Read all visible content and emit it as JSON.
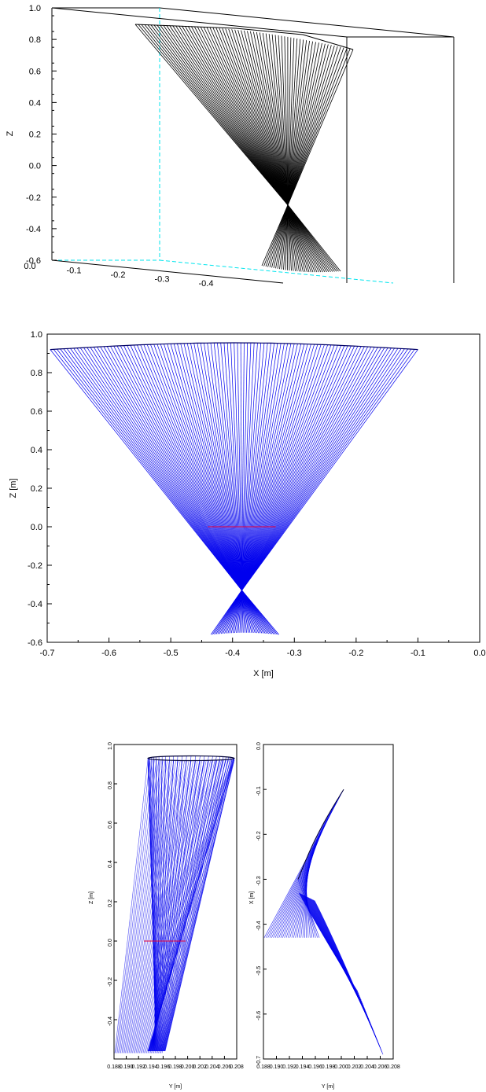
{
  "chart_data": [
    {
      "type": "line",
      "subtype": "3d-ray-fan",
      "zlabel": "Z",
      "zlim": [
        -0.6,
        1.0
      ],
      "z_ticks": [
        "1.0",
        "0.8",
        "0.6",
        "0.4",
        "0.2",
        "0.0",
        "-0.2",
        "-0.4",
        "-0.6"
      ],
      "x_ticks": [
        "0.0",
        "-0.1",
        "-0.2",
        "-0.3",
        "-0.4"
      ],
      "series_color": "#000000",
      "aux_color": "#00e5ee",
      "upper_fan": {
        "z_top": 0.87,
        "z_focus": -0.25,
        "rays": 70
      },
      "lower_fan": {
        "z_focus": -0.25,
        "z_bottom": -0.63,
        "rays": 40
      }
    },
    {
      "type": "line",
      "subtype": "ray-fan",
      "xlabel": "X [m]",
      "ylabel": "Z [m]",
      "xlim": [
        -0.7,
        0.0
      ],
      "ylim": [
        -0.6,
        1.0
      ],
      "x_ticks": [
        "-0.7",
        "-0.6",
        "-0.5",
        "-0.4",
        "-0.3",
        "-0.2",
        "-0.1",
        "0.0"
      ],
      "y_ticks": [
        "1.0",
        "0.8",
        "0.6",
        "0.4",
        "0.2",
        "0.0",
        "-0.2",
        "-0.4",
        "-0.6"
      ],
      "series_color": "#0000ee",
      "marker_color": "#e8003a",
      "upper_fan": {
        "x_left": -0.695,
        "x_right": -0.1,
        "z_edge": 0.92,
        "z_center": 0.955,
        "focus": [
          -0.385,
          -0.33
        ],
        "rays": 110
      },
      "lower_fan": {
        "focus": [
          -0.385,
          -0.33
        ],
        "x_left": -0.435,
        "x_right": -0.325,
        "z_bottom": -0.56,
        "rays": 40
      },
      "marker": {
        "x1": -0.44,
        "x2": -0.33,
        "z": 0.0
      }
    },
    {
      "type": "line",
      "subtype": "ray-fan-side",
      "xlabel": "Y [m]",
      "ylabel": "Z [m]",
      "ylim": [
        -0.6,
        1.0
      ],
      "x_ticks": [
        "0.188",
        "0.190",
        "0.192",
        "0.194",
        "0.196",
        "0.198",
        "0.200",
        "0.202",
        "0.204",
        "0.206",
        "0.208"
      ],
      "y_ticks": [
        "1.0",
        "0.8",
        "0.6",
        "0.4",
        "0.2",
        "0.0",
        "-0.2",
        "-0.4"
      ],
      "series_color": "#0000ee",
      "marker_color": "#e8003a"
    },
    {
      "type": "line",
      "subtype": "ray-fan-top",
      "xlabel": "Y [m]",
      "ylabel": "X [m]",
      "ylim": [
        -0.7,
        0.0
      ],
      "x_ticks": [
        "0.188",
        "0.190",
        "0.192",
        "0.194",
        "0.196",
        "0.198",
        "0.200",
        "0.202",
        "0.204",
        "0.206",
        "0.208"
      ],
      "y_ticks": [
        "0.0",
        "-0.1",
        "-0.2",
        "-0.3",
        "-0.4",
        "-0.5",
        "-0.6",
        "-0.7"
      ],
      "series_color": "#0000ee"
    }
  ]
}
